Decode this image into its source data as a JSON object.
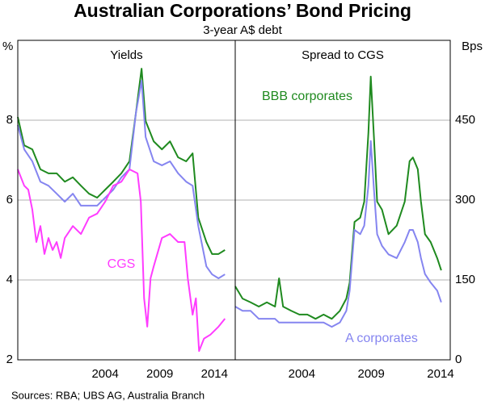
{
  "title": "Australian Corporations’ Bond Pricing",
  "subtitle": "3-year A$ debt",
  "source": "Sources: RBA; UBS AG, Australia Branch",
  "chart_data": [
    {
      "type": "line",
      "title": "Yields",
      "y_label": "%",
      "xlim": [
        1996,
        2015.9
      ],
      "xticks": [
        2004,
        2009,
        2014
      ],
      "ylim": [
        2,
        10
      ],
      "yticks": [
        2,
        4,
        6,
        8
      ],
      "grid": true,
      "series": [
        {
          "color": "#1f8a1f",
          "x": [
            1996.0,
            1996.59,
            1997.33,
            1998.07,
            1998.81,
            1999.56,
            2000.3,
            2001.04,
            2001.78,
            2002.52,
            2003.26,
            2004.0,
            2004.74,
            2005.48,
            2006.22,
            2006.81,
            2007.33,
            2007.7,
            2008.44,
            2009.19,
            2009.93,
            2010.67,
            2011.41,
            2012.0,
            2012.52,
            2013.26,
            2013.78,
            2014.37,
            2014.96
          ],
          "values": [
            8.08,
            7.37,
            7.27,
            6.77,
            6.67,
            6.67,
            6.46,
            6.57,
            6.36,
            6.16,
            6.06,
            6.26,
            6.46,
            6.67,
            6.97,
            8.18,
            9.29,
            7.98,
            7.47,
            7.27,
            7.47,
            7.07,
            6.97,
            7.17,
            5.56,
            4.95,
            4.65,
            4.65,
            4.75
          ]
        },
        {
          "color": "#8585f0",
          "x": [
            1996.0,
            1996.59,
            1997.33,
            1998.07,
            1998.81,
            1999.56,
            2000.3,
            2001.04,
            2001.78,
            2002.52,
            2003.26,
            2004.0,
            2004.74,
            2005.48,
            2006.22,
            2006.81,
            2007.33,
            2007.7,
            2008.44,
            2009.19,
            2009.93,
            2010.67,
            2011.41,
            2012.0,
            2012.52,
            2013.26,
            2013.78,
            2014.37,
            2014.96
          ],
          "values": [
            7.88,
            7.27,
            6.97,
            6.46,
            6.36,
            6.16,
            5.96,
            6.16,
            5.86,
            5.86,
            5.86,
            6.06,
            6.26,
            6.57,
            6.77,
            8.18,
            8.99,
            7.58,
            6.97,
            6.87,
            6.97,
            6.67,
            6.46,
            6.36,
            5.35,
            4.34,
            4.14,
            4.04,
            4.14
          ]
        },
        {
          "name": "CGS",
          "color": "#ff3cff",
          "x": [
            1996.0,
            1996.59,
            1996.96,
            1997.33,
            1997.7,
            1998.07,
            1998.44,
            1998.81,
            1999.19,
            1999.56,
            1999.93,
            2000.3,
            2001.04,
            2001.78,
            2002.52,
            2003.26,
            2004.0,
            2004.74,
            2005.48,
            2006.22,
            2006.96,
            2007.26,
            2007.56,
            2007.85,
            2008.15,
            2008.44,
            2009.19,
            2009.93,
            2010.67,
            2011.26,
            2011.56,
            2012.0,
            2012.3,
            2012.59,
            2013.04,
            2013.63,
            2014.37,
            2014.96
          ],
          "values": [
            6.77,
            6.36,
            6.26,
            5.76,
            4.95,
            5.35,
            4.65,
            5.05,
            4.75,
            4.95,
            4.55,
            5.05,
            5.35,
            5.15,
            5.56,
            5.66,
            5.96,
            6.36,
            6.46,
            6.77,
            6.67,
            5.96,
            3.54,
            2.83,
            4.04,
            4.34,
            5.05,
            5.15,
            4.95,
            4.95,
            4.04,
            3.13,
            3.54,
            2.22,
            2.53,
            2.63,
            2.83,
            3.03
          ]
        }
      ]
    },
    {
      "type": "line",
      "title": "Spread to CGS",
      "y_label": "Bps",
      "xlim": [
        1999.2,
        2014.7
      ],
      "xticks": [
        2004,
        2009,
        2014
      ],
      "ylim": [
        0,
        600
      ],
      "yticks": [
        0,
        150,
        300,
        450
      ],
      "grid": true,
      "series": [
        {
          "name": "BBB corporates",
          "color": "#1f8a1f",
          "x": [
            1999.2,
            1999.73,
            2000.31,
            2000.9,
            2001.48,
            2002.07,
            2002.36,
            2002.65,
            2003.24,
            2003.82,
            2004.4,
            2004.99,
            2005.57,
            2006.16,
            2006.74,
            2007.21,
            2007.45,
            2007.8,
            2008.21,
            2008.5,
            2008.8,
            2008.97,
            2009.2,
            2009.43,
            2009.78,
            2010.25,
            2010.84,
            2011.42,
            2011.77,
            2012.01,
            2012.36,
            2012.59,
            2012.88,
            2013.29,
            2013.76,
            2014.05
          ],
          "values": [
            138,
            115,
            108,
            100,
            108,
            100,
            153,
            100,
            92,
            85,
            85,
            77,
            85,
            77,
            92,
            115,
            145,
            259,
            267,
            297,
            426,
            532,
            418,
            297,
            282,
            236,
            252,
            297,
            373,
            380,
            358,
            297,
            236,
            221,
            191,
            168
          ]
        },
        {
          "name": "A corporates",
          "color": "#8585f0",
          "x": [
            1999.2,
            1999.73,
            2000.31,
            2000.9,
            2001.48,
            2002.07,
            2002.36,
            2002.65,
            2003.24,
            2003.82,
            2004.4,
            2004.99,
            2005.57,
            2006.16,
            2006.74,
            2007.21,
            2007.45,
            2007.8,
            2008.21,
            2008.5,
            2008.8,
            2008.97,
            2009.2,
            2009.43,
            2009.78,
            2010.25,
            2010.84,
            2011.42,
            2011.77,
            2012.01,
            2012.36,
            2012.59,
            2012.88,
            2013.29,
            2013.76,
            2014.05
          ],
          "values": [
            100,
            92,
            92,
            77,
            77,
            77,
            70,
            70,
            70,
            70,
            70,
            70,
            70,
            62,
            70,
            92,
            130,
            244,
            236,
            252,
            327,
            411,
            320,
            236,
            214,
            198,
            191,
            221,
            244,
            244,
            221,
            191,
            161,
            145,
            130,
            108
          ]
        }
      ]
    }
  ]
}
